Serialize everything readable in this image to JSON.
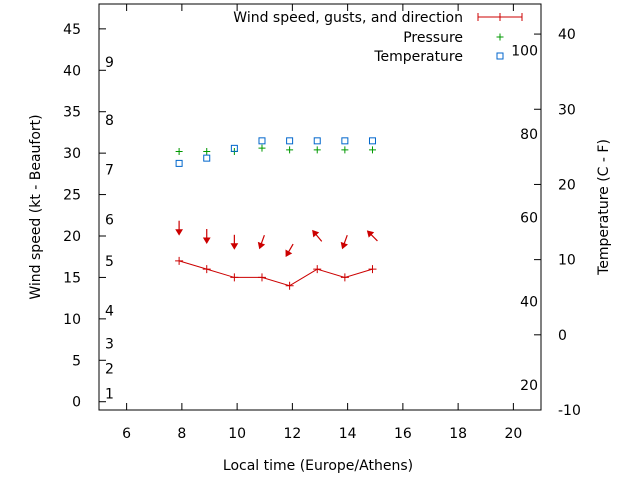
{
  "chart_data": {
    "type": "line",
    "xlabel": "Local time (Europe/Athens)",
    "ylabel_left": "Wind speed (kt - Beaufort)",
    "ylabel_right": "Temperature (C - F)",
    "x_range": [
      5,
      21
    ],
    "x_ticks": [
      6,
      8,
      10,
      12,
      14,
      16,
      18,
      20
    ],
    "y_left_range": [
      -1,
      48
    ],
    "y_left_ticks": [
      0,
      5,
      10,
      15,
      20,
      25,
      30,
      35,
      40,
      45
    ],
    "y_right_range": [
      -10,
      44
    ],
    "y_right_ticks": [
      -10,
      0,
      10,
      20,
      30,
      40
    ],
    "beaufort_labels": [
      {
        "label": "1",
        "kt": 1
      },
      {
        "label": "2",
        "kt": 4
      },
      {
        "label": "3",
        "kt": 7
      },
      {
        "label": "4",
        "kt": 11
      },
      {
        "label": "5",
        "kt": 17
      },
      {
        "label": "6",
        "kt": 22
      },
      {
        "label": "7",
        "kt": 28
      },
      {
        "label": "8",
        "kt": 34
      },
      {
        "label": "9",
        "kt": 41
      }
    ],
    "fahrenheit_labels": [
      {
        "label": "20",
        "celsius": -6.7
      },
      {
        "label": "40",
        "celsius": 4.4
      },
      {
        "label": "60",
        "celsius": 15.6
      },
      {
        "label": "80",
        "celsius": 26.7
      },
      {
        "label": "100",
        "celsius": 37.8
      }
    ],
    "legend": [
      {
        "label": "Wind speed, gusts, and direction",
        "color": "#cc0000",
        "marker": "errorbar"
      },
      {
        "label": "Pressure",
        "color": "#009900",
        "marker": "plus"
      },
      {
        "label": "Temperature",
        "color": "#0066cc",
        "marker": "square"
      }
    ],
    "series": [
      {
        "name": "Wind speed",
        "color": "#cc0000",
        "x": [
          7.9,
          8.9,
          9.9,
          10.9,
          11.9,
          12.9,
          13.9,
          14.9
        ],
        "values": [
          17,
          16,
          15,
          15,
          14,
          16,
          15,
          16
        ]
      },
      {
        "name": "Wind direction",
        "color": "#cc0000",
        "x": [
          7.9,
          8.9,
          9.9,
          10.9,
          11.9,
          12.9,
          13.9,
          14.9
        ],
        "y": [
          21,
          20,
          19.3,
          19.3,
          18.3,
          20,
          19.3,
          20
        ],
        "direction_deg": [
          0,
          0,
          0,
          20,
          30,
          140,
          20,
          135
        ]
      },
      {
        "name": "Pressure",
        "color": "#009900",
        "x": [
          7.9,
          8.9,
          9.9,
          10.9,
          11.9,
          12.9,
          13.9,
          14.9
        ],
        "values": [
          30.2,
          30.2,
          30.2,
          30.6,
          30.4,
          30.4,
          30.4,
          30.4
        ]
      },
      {
        "name": "Temperature",
        "color": "#0066cc",
        "x": [
          7.9,
          8.9,
          9.9,
          10.9,
          11.9,
          12.9,
          13.9,
          14.9
        ],
        "values": [
          22.8,
          23.5,
          24.8,
          25.8,
          25.8,
          25.8,
          25.8,
          25.8
        ]
      }
    ]
  }
}
